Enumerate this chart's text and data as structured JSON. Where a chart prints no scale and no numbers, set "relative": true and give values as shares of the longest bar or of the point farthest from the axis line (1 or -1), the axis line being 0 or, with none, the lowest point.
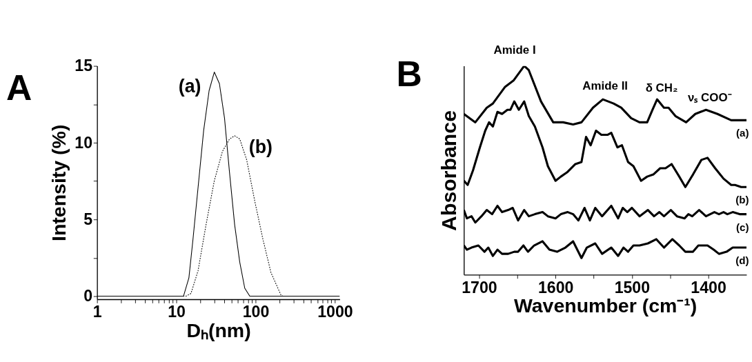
{
  "chart_data": [
    {
      "type": "line",
      "title": "A",
      "xlabel": "Dₕ(nm)",
      "ylabel": "Intensity (%)",
      "log": "x",
      "xlim": [
        1,
        1150
      ],
      "ylim": [
        -0.2,
        15
      ],
      "xticks": [
        1,
        {
          "value": 2,
          "label": null
        },
        {
          "value": 3,
          "label": null
        },
        {
          "value": 4,
          "label": null
        },
        {
          "value": 5,
          "label": null
        },
        {
          "value": 6,
          "label": null
        },
        {
          "value": 7,
          "label": null
        },
        {
          "value": 8,
          "label": null
        },
        {
          "value": 9,
          "label": null
        },
        10,
        {
          "value": 20,
          "label": null
        },
        {
          "value": 30,
          "label": null
        },
        {
          "value": 40,
          "label": null
        },
        {
          "value": 50,
          "label": null
        },
        {
          "value": 60,
          "label": null
        },
        {
          "value": 70,
          "label": null
        },
        {
          "value": 80,
          "label": null
        },
        {
          "value": 90,
          "label": null
        },
        100,
        {
          "value": 200,
          "label": null
        },
        {
          "value": 300,
          "label": null
        },
        {
          "value": 400,
          "label": null
        },
        {
          "value": 500,
          "label": null
        },
        {
          "value": 600,
          "label": null
        },
        {
          "value": 700,
          "label": null
        },
        {
          "value": 800,
          "label": null
        },
        {
          "value": 900,
          "label": null
        },
        1000
      ],
      "yticks": [
        0,
        {
          "value": 2.5,
          "label": null
        },
        5,
        {
          "value": 7.5,
          "label": null
        },
        10,
        {
          "value": 12.5,
          "label": null
        },
        15
      ],
      "grid": false,
      "legend": false,
      "series": [
        {
          "color": "#000000",
          "line_style": "solid",
          "x": [
            1,
            12.3,
            14.4,
            16.2,
            22.1,
            25.9,
            30.1,
            34.9,
            40.5,
            46.8,
            54.3,
            63.0,
            72.9,
            84.3,
            1150
          ],
          "values": [
            0,
            0,
            1.2,
            3.7,
            10.8,
            13.4,
            14.6,
            13.85,
            11.6,
            8.07,
            4.67,
            2.22,
            0.52,
            0,
            0
          ]
        },
        {
          "color": "#000000",
          "line_style": "dotted",
          "x": [
            1,
            13.2,
            15.3,
            18.8,
            23.7,
            30.1,
            38.1,
            46.8,
            54.3,
            63.0,
            77.1,
            97.8,
            123.5,
            156,
            210,
            223,
            1150
          ],
          "values": [
            0,
            0,
            0.18,
            1.67,
            4.67,
            7.52,
            9.43,
            10.24,
            10.45,
            10.24,
            8.88,
            6.16,
            3.71,
            1.54,
            0.04,
            0,
            0
          ]
        }
      ],
      "annotations": [
        "(a)",
        "(b)"
      ]
    },
    {
      "type": "line",
      "title": "B",
      "xlabel": "Wavenumber (cm⁻¹)",
      "ylabel": "Absorbance",
      "relative": true,
      "xlim": [
        1720,
        1350
      ],
      "xticks": [
        1700,
        {
          "value": 1650,
          "label": null
        },
        1600,
        {
          "value": 1550,
          "label": null
        },
        1500,
        {
          "value": 1450,
          "label": null
        },
        1400
      ],
      "grid": false,
      "legend": false,
      "series": [
        {
          "name": "(a)",
          "color": "#000000",
          "line_style": "solid",
          "x": [
            1720,
            1705,
            1690,
            1682,
            1666,
            1655,
            1641,
            1635,
            1619,
            1603,
            1590,
            1577,
            1566,
            1551,
            1538,
            1524,
            1514,
            1501,
            1490,
            1480,
            1473,
            1467,
            1458,
            1452,
            1443,
            1429,
            1417,
            1403,
            1388,
            1370,
            1350
          ],
          "values": [
            0.77,
            0.73,
            0.8,
            0.82,
            0.9,
            0.93,
            1,
            0.98,
            0.83,
            0.73,
            0.73,
            0.72,
            0.73,
            0.8,
            0.84,
            0.82,
            0.8,
            0.75,
            0.73,
            0.73,
            0.79,
            0.84,
            0.8,
            0.8,
            0.76,
            0.73,
            0.77,
            0.79,
            0.77,
            0.74,
            0.74
          ]
        },
        {
          "name": "(b)",
          "color": "#000000",
          "line_style": "solid",
          "x": [
            1720,
            1715,
            1708,
            1699,
            1692,
            1687,
            1682,
            1676,
            1670,
            1663,
            1659,
            1654,
            1648,
            1641,
            1635,
            1627,
            1617,
            1610,
            1600,
            1593,
            1585,
            1574,
            1566,
            1560,
            1554,
            1547,
            1540,
            1532,
            1527,
            1519,
            1513,
            1505,
            1498,
            1488,
            1480,
            1472,
            1463,
            1456,
            1448,
            1438,
            1430,
            1420,
            1409,
            1401,
            1391,
            1380,
            1370,
            1365,
            1357,
            1350
          ],
          "values": [
            0.45,
            0.43,
            0.5,
            0.61,
            0.69,
            0.73,
            0.71,
            0.78,
            0.77,
            0.79,
            0.79,
            0.83,
            0.79,
            0.83,
            0.76,
            0.71,
            0.61,
            0.52,
            0.45,
            0.47,
            0.49,
            0.53,
            0.54,
            0.66,
            0.62,
            0.69,
            0.67,
            0.67,
            0.68,
            0.61,
            0.62,
            0.54,
            0.52,
            0.45,
            0.47,
            0.48,
            0.51,
            0.51,
            0.53,
            0.47,
            0.42,
            0.48,
            0.55,
            0.56,
            0.51,
            0.46,
            0.43,
            0.43,
            0.42,
            0.42
          ]
        },
        {
          "name": "(c)",
          "color": "#000000",
          "line_style": "solid",
          "x": [
            1720,
            1716,
            1710,
            1705,
            1697,
            1690,
            1683,
            1676,
            1670,
            1662,
            1656,
            1649,
            1641,
            1635,
            1627,
            1617,
            1610,
            1600,
            1593,
            1584,
            1577,
            1570,
            1562,
            1555,
            1548,
            1539,
            1527,
            1518,
            1512,
            1506,
            1500,
            1490,
            1479,
            1471,
            1464,
            1458,
            1449,
            1441,
            1431,
            1426,
            1421,
            1412,
            1403,
            1392,
            1386,
            1380,
            1375,
            1368,
            1359,
            1350
          ],
          "values": [
            0.31,
            0.27,
            0.28,
            0.25,
            0.28,
            0.31,
            0.29,
            0.33,
            0.3,
            0.31,
            0.32,
            0.26,
            0.31,
            0.28,
            0.29,
            0.3,
            0.28,
            0.27,
            0.29,
            0.3,
            0.29,
            0.26,
            0.32,
            0.26,
            0.32,
            0.28,
            0.33,
            0.27,
            0.32,
            0.3,
            0.32,
            0.28,
            0.31,
            0.28,
            0.3,
            0.28,
            0.31,
            0.28,
            0.27,
            0.29,
            0.28,
            0.31,
            0.28,
            0.3,
            0.29,
            0.3,
            0.29,
            0.3,
            0.29,
            0.29
          ]
        },
        {
          "name": "(d)",
          "color": "#000000",
          "line_style": "solid",
          "x": [
            1720,
            1716,
            1710,
            1701,
            1693,
            1688,
            1682,
            1676,
            1670,
            1662,
            1654,
            1649,
            1642,
            1636,
            1628,
            1617,
            1608,
            1598,
            1587,
            1577,
            1566,
            1559,
            1548,
            1539,
            1527,
            1518,
            1511,
            1505,
            1498,
            1490,
            1479,
            1468,
            1458,
            1447,
            1438,
            1430,
            1420,
            1413,
            1401,
            1393,
            1386,
            1376,
            1368,
            1359,
            1350
          ],
          "values": [
            0.14,
            0.12,
            0.13,
            0.14,
            0.11,
            0.13,
            0.09,
            0.12,
            0.1,
            0.1,
            0.11,
            0.11,
            0.14,
            0.11,
            0.14,
            0.16,
            0.12,
            0.11,
            0.13,
            0.16,
            0.08,
            0.13,
            0.15,
            0.1,
            0.13,
            0.09,
            0.13,
            0.11,
            0.14,
            0.14,
            0.15,
            0.17,
            0.13,
            0.17,
            0.14,
            0.11,
            0.11,
            0.14,
            0.14,
            0.12,
            0.1,
            0.11,
            0.13,
            0.13,
            0.13
          ]
        }
      ],
      "annotations": [
        "Amide I",
        "Amide II",
        "δ CH₂",
        "νₛ COO⁻"
      ]
    }
  ]
}
